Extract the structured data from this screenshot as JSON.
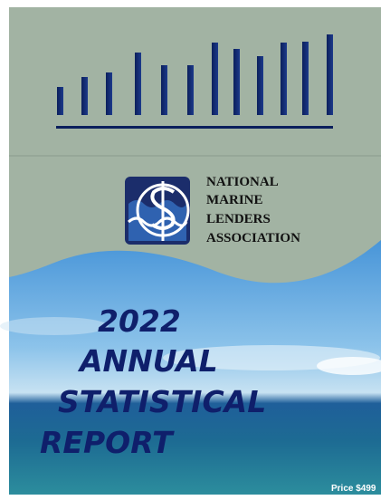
{
  "organization": {
    "lines": [
      "NATIONAL",
      "MARINE",
      "LENDERS",
      "ASSOCIATION"
    ]
  },
  "title": {
    "lines": [
      "2022",
      "ANNUAL",
      "STATISTICAL",
      "REPORT"
    ]
  },
  "price": "Price $499"
}
